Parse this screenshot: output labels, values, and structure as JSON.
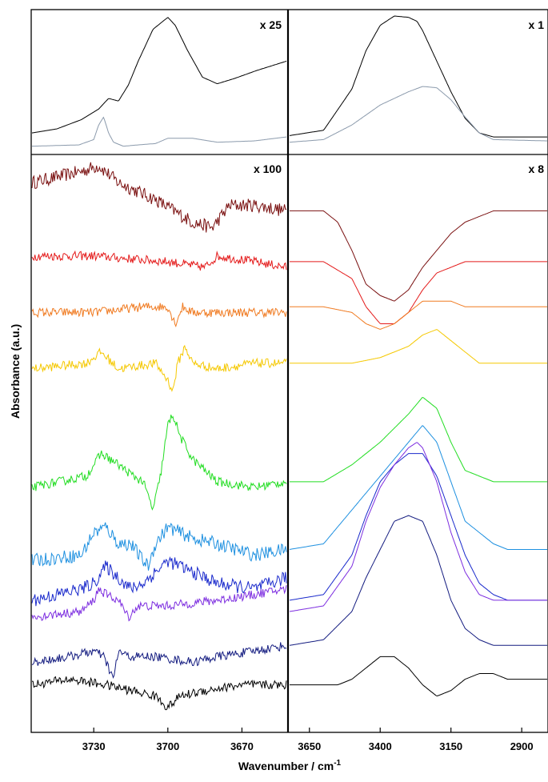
{
  "chart_data": {
    "type": "line",
    "xlabel": "Wavenumber / cm",
    "xlabel_superscript": "-1",
    "ylabel": "Absorbance (a.u.)",
    "grid": false,
    "legend": "none",
    "panels": [
      {
        "id": "top-left",
        "multiplier": "x 25",
        "x_range": [
          3755,
          3652
        ],
        "x_ticks": [],
        "series": [
          {
            "color": "#000000",
            "x": [
              3755,
              3745,
              3735,
              3728,
              3724,
              3720,
              3716,
              3712,
              3706,
              3700,
              3697,
              3692,
              3686,
              3680,
              3673,
              3664,
              3652
            ],
            "y": [
              0.12,
              0.15,
              0.22,
              0.3,
              0.38,
              0.36,
              0.48,
              0.66,
              0.9,
              0.99,
              0.93,
              0.74,
              0.54,
              0.49,
              0.53,
              0.59,
              0.66
            ]
          },
          {
            "color": "#8b9aac",
            "x": [
              3755,
              3736,
              3730,
              3728,
              3726,
              3724,
              3722,
              3718,
              3712,
              3705,
              3700,
              3690,
              3680,
              3665,
              3652
            ],
            "y": [
              0.02,
              0.03,
              0.07,
              0.18,
              0.24,
              0.12,
              0.05,
              0.02,
              0.03,
              0.04,
              0.08,
              0.08,
              0.05,
              0.06,
              0.09
            ]
          }
        ]
      },
      {
        "id": "top-right",
        "multiplier": "x 1",
        "x_range": [
          3720,
          2810
        ],
        "x_ticks": [],
        "series": [
          {
            "color": "#000000",
            "x": [
              3720,
              3600,
              3500,
              3450,
              3400,
              3350,
              3300,
              3270,
              3250,
              3200,
              3150,
              3100,
              3050,
              3000,
              2950,
              2810
            ],
            "y": [
              0.1,
              0.14,
              0.45,
              0.74,
              0.93,
              1.0,
              0.99,
              0.96,
              0.89,
              0.66,
              0.43,
              0.23,
              0.12,
              0.09,
              0.09,
              0.09
            ]
          },
          {
            "color": "#8b9aac",
            "x": [
              3720,
              3600,
              3500,
              3400,
              3300,
              3250,
              3200,
              3150,
              3100,
              3050,
              3000,
              2810
            ],
            "y": [
              0.05,
              0.07,
              0.18,
              0.33,
              0.43,
              0.47,
              0.46,
              0.37,
              0.24,
              0.12,
              0.07,
              0.06
            ]
          }
        ]
      },
      {
        "id": "bottom-left",
        "multiplier": "x 100",
        "x_range": [
          3755,
          3652
        ],
        "x_ticks": [
          3730,
          3700,
          3670
        ],
        "series": [
          {
            "color": "#7a1010",
            "x": [
              3755,
              3735,
              3728,
              3720,
              3705,
              3690,
              3682,
              3675,
              3665,
              3652
            ],
            "y": [
              0.96,
              0.98,
              0.99,
              0.96,
              0.93,
              0.89,
              0.88,
              0.92,
              0.92,
              0.91
            ],
            "noise": 0.012
          },
          {
            "color": "#e41a1a",
            "x": [
              3755,
              3730,
              3700,
              3685,
              3680,
              3665,
              3652
            ],
            "y": [
              0.83,
              0.83,
              0.82,
              0.81,
              0.83,
              0.82,
              0.81
            ],
            "noise": 0.008
          },
          {
            "color": "#f07a20",
            "x": [
              3755,
              3730,
              3710,
              3700,
              3697,
              3694,
              3690,
              3675,
              3652
            ],
            "y": [
              0.73,
              0.73,
              0.74,
              0.74,
              0.71,
              0.74,
              0.73,
              0.73,
              0.73
            ],
            "noise": 0.008
          },
          {
            "color": "#f5c800",
            "x": [
              3755,
              3733,
              3727,
              3720,
              3705,
              3700,
              3698,
              3696,
              3693,
              3690,
              3680,
              3665,
              3652
            ],
            "y": [
              0.63,
              0.64,
              0.66,
              0.63,
              0.64,
              0.61,
              0.59,
              0.64,
              0.67,
              0.64,
              0.63,
              0.64,
              0.64
            ],
            "noise": 0.008
          },
          {
            "color": "#22dd22",
            "x": [
              3755,
              3733,
              3727,
              3720,
              3714,
              3710,
              3706,
              3703,
              3700,
              3698,
              3695,
              3690,
              3680,
              3665,
              3652
            ],
            "y": [
              0.42,
              0.44,
              0.48,
              0.46,
              0.44,
              0.43,
              0.38,
              0.44,
              0.53,
              0.55,
              0.51,
              0.47,
              0.43,
              0.42,
              0.43
            ],
            "noise": 0.008
          },
          {
            "color": "#1e90e0",
            "x": [
              3755,
              3735,
              3730,
              3725,
              3720,
              3715,
              3710,
              3708,
              3705,
              3700,
              3695,
              3690,
              3680,
              3665,
              3652
            ],
            "y": [
              0.29,
              0.3,
              0.34,
              0.35,
              0.32,
              0.32,
              0.29,
              0.28,
              0.32,
              0.35,
              0.34,
              0.33,
              0.32,
              0.3,
              0.31
            ],
            "noise": 0.012
          },
          {
            "color": "#1a2acc",
            "x": [
              3755,
              3735,
              3730,
              3725,
              3720,
              3715,
              3710,
              3705,
              3700,
              3695,
              3690,
              3680,
              3665,
              3652
            ],
            "y": [
              0.22,
              0.24,
              0.25,
              0.28,
              0.26,
              0.24,
              0.25,
              0.27,
              0.29,
              0.28,
              0.27,
              0.25,
              0.24,
              0.26
            ],
            "noise": 0.012
          },
          {
            "color": "#7d2ee0",
            "x": [
              3755,
              3735,
              3730,
              3728,
              3725,
              3720,
              3716,
              3712,
              3700,
              3680,
              3665,
              3652
            ],
            "y": [
              0.19,
              0.2,
              0.22,
              0.24,
              0.23,
              0.22,
              0.19,
              0.21,
              0.21,
              0.22,
              0.23,
              0.24
            ],
            "noise": 0.008
          },
          {
            "color": "#141c80",
            "x": [
              3755,
              3740,
              3730,
              3726,
              3722,
              3720,
              3716,
              3705,
              3690,
              3680,
              3665,
              3652
            ],
            "y": [
              0.11,
              0.12,
              0.13,
              0.12,
              0.08,
              0.13,
              0.12,
              0.12,
              0.11,
              0.12,
              0.13,
              0.14
            ],
            "noise": 0.008
          },
          {
            "color": "#000000",
            "x": [
              3755,
              3740,
              3725,
              3715,
              3705,
              3700,
              3695,
              3685,
              3670,
              3652
            ],
            "y": [
              0.07,
              0.08,
              0.07,
              0.06,
              0.05,
              0.03,
              0.05,
              0.06,
              0.07,
              0.07
            ],
            "noise": 0.008
          }
        ]
      },
      {
        "id": "bottom-right",
        "multiplier": "x 8",
        "x_range": [
          3720,
          2810
        ],
        "x_ticks": [
          3650,
          3400,
          3150,
          2900
        ],
        "series": [
          {
            "color": "#7a1010",
            "x": [
              3720,
              3600,
              3550,
              3500,
              3450,
              3400,
              3350,
              3300,
              3250,
              3200,
              3150,
              3100,
              3050,
              3000,
              2950,
              2810
            ],
            "y": [
              0.91,
              0.91,
              0.89,
              0.84,
              0.78,
              0.76,
              0.75,
              0.77,
              0.81,
              0.84,
              0.87,
              0.89,
              0.9,
              0.91,
              0.91,
              0.91
            ]
          },
          {
            "color": "#e41a1a",
            "x": [
              3720,
              3600,
              3500,
              3450,
              3400,
              3350,
              3300,
              3250,
              3200,
              3150,
              3100,
              3000,
              2810
            ],
            "y": [
              0.82,
              0.82,
              0.79,
              0.74,
              0.71,
              0.71,
              0.73,
              0.77,
              0.8,
              0.81,
              0.82,
              0.82,
              0.82
            ]
          },
          {
            "color": "#f07a20",
            "x": [
              3720,
              3600,
              3500,
              3450,
              3400,
              3350,
              3300,
              3250,
              3200,
              3150,
              3100,
              3050,
              3000,
              2810
            ],
            "y": [
              0.74,
              0.74,
              0.73,
              0.71,
              0.7,
              0.71,
              0.73,
              0.75,
              0.75,
              0.75,
              0.74,
              0.74,
              0.74,
              0.74
            ]
          },
          {
            "color": "#f5c800",
            "x": [
              3720,
              3600,
              3500,
              3400,
              3300,
              3250,
              3200,
              3150,
              3100,
              3050,
              3000,
              2810
            ],
            "y": [
              0.64,
              0.64,
              0.64,
              0.65,
              0.67,
              0.69,
              0.7,
              0.68,
              0.66,
              0.64,
              0.64,
              0.64
            ]
          },
          {
            "color": "#22dd22",
            "x": [
              3720,
              3600,
              3500,
              3400,
              3300,
              3250,
              3200,
              3150,
              3100,
              3000,
              2950,
              2810
            ],
            "y": [
              0.43,
              0.43,
              0.46,
              0.5,
              0.55,
              0.58,
              0.56,
              0.5,
              0.45,
              0.43,
              0.43,
              0.43
            ]
          },
          {
            "color": "#1e90e0",
            "x": [
              3720,
              3600,
              3500,
              3400,
              3300,
              3250,
              3200,
              3150,
              3100,
              3000,
              2950,
              2810
            ],
            "y": [
              0.31,
              0.32,
              0.38,
              0.44,
              0.5,
              0.53,
              0.5,
              0.43,
              0.36,
              0.32,
              0.31,
              0.31
            ]
          },
          {
            "color": "#1a2acc",
            "x": [
              3720,
              3600,
              3500,
              3450,
              3400,
              3350,
              3300,
              3250,
              3200,
              3150,
              3100,
              3050,
              3000,
              2950,
              2810
            ],
            "y": [
              0.22,
              0.23,
              0.3,
              0.37,
              0.43,
              0.46,
              0.48,
              0.48,
              0.44,
              0.37,
              0.3,
              0.25,
              0.23,
              0.22,
              0.22
            ]
          },
          {
            "color": "#7d2ee0",
            "x": [
              3720,
              3600,
              3500,
              3450,
              3400,
              3350,
              3300,
              3270,
              3250,
              3200,
              3150,
              3100,
              3050,
              3000,
              2950,
              2810
            ],
            "y": [
              0.2,
              0.21,
              0.28,
              0.36,
              0.42,
              0.46,
              0.49,
              0.5,
              0.49,
              0.43,
              0.34,
              0.27,
              0.23,
              0.22,
              0.22,
              0.22
            ]
          },
          {
            "color": "#141c80",
            "x": [
              3720,
              3600,
              3500,
              3450,
              3400,
              3350,
              3300,
              3250,
              3200,
              3150,
              3100,
              3050,
              3000,
              2950,
              2810
            ],
            "y": [
              0.14,
              0.15,
              0.2,
              0.26,
              0.31,
              0.36,
              0.37,
              0.36,
              0.3,
              0.22,
              0.17,
              0.15,
              0.14,
              0.14,
              0.14
            ]
          },
          {
            "color": "#000000",
            "x": [
              3720,
              3600,
              3550,
              3500,
              3450,
              3400,
              3350,
              3300,
              3250,
              3200,
              3150,
              3100,
              3050,
              3000,
              2950,
              2810
            ],
            "y": [
              0.07,
              0.07,
              0.07,
              0.08,
              0.1,
              0.12,
              0.12,
              0.1,
              0.07,
              0.05,
              0.06,
              0.08,
              0.09,
              0.09,
              0.08,
              0.08
            ]
          }
        ]
      }
    ]
  }
}
